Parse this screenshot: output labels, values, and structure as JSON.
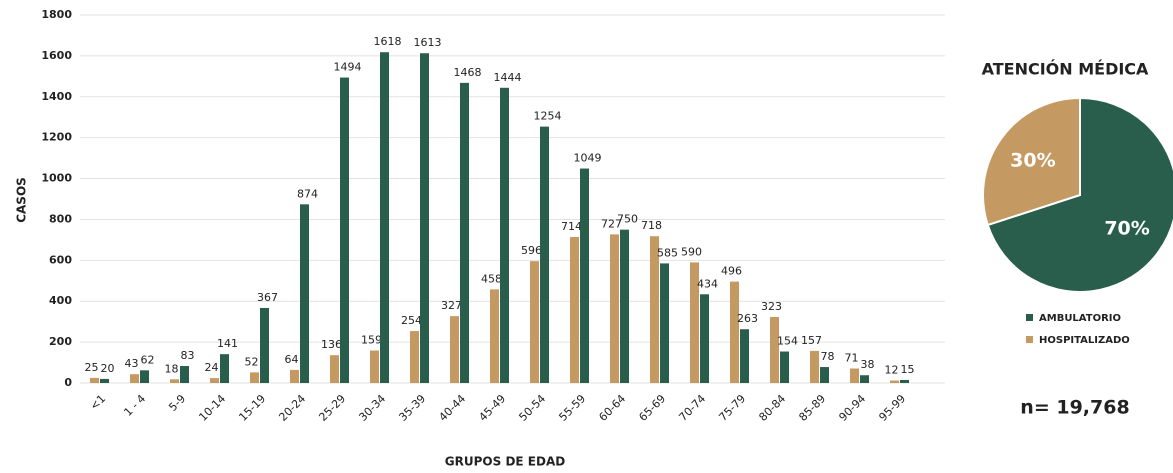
{
  "chart_data": [
    {
      "type": "bar",
      "ylabel": "CASOS",
      "xlabel": "GRUPOS DE EDAD",
      "categories": [
        "<1",
        "1 - 4",
        "5-9",
        "10-14",
        "15-19",
        "20-24",
        "25-29",
        "30-34",
        "35-39",
        "40-44",
        "45-49",
        "50-54",
        "55-59",
        "60-64",
        "65-69",
        "70-74",
        "75-79",
        "80-84",
        "85-89",
        "90-94",
        "95-99"
      ],
      "series": [
        {
          "color": "#c49a62",
          "values": [
            25,
            43,
            18,
            24,
            52,
            64,
            136,
            159,
            254,
            327,
            458,
            596,
            714,
            727,
            718,
            590,
            496,
            323,
            157,
            71,
            12
          ]
        },
        {
          "color": "#2a5e4c",
          "values": [
            20,
            62,
            83,
            141,
            367,
            874,
            1494,
            1618,
            1613,
            1468,
            1444,
            1254,
            1049,
            750,
            585,
            434,
            263,
            154,
            78,
            38,
            15
          ]
        }
      ],
      "ylim": [
        0,
        1800
      ],
      "yticks": [
        0,
        200,
        400,
        600,
        800,
        1000,
        1200,
        1400,
        1600,
        1800
      ],
      "grid": true
    },
    {
      "type": "pie",
      "title": "ATENCIÓN MÉDICA",
      "categories": [
        "AMBULATORIO",
        "HOSPITALIZADO"
      ],
      "values": [
        70,
        30
      ],
      "value_labels": [
        "70%",
        "30%"
      ],
      "colors": [
        "#2a5e4c",
        "#c49a62"
      ],
      "annotation": "n= 19,768"
    }
  ]
}
